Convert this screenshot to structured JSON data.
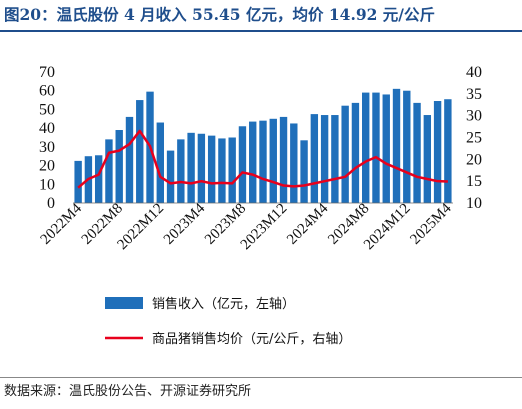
{
  "title": "图20：温氏股份 4 月收入 55.45 亿元，均价 14.92 元/公斤",
  "source": "数据来源：温氏股份公告、开源证券研究所",
  "colors": {
    "bar": "#1f6fba",
    "line": "#e8001c",
    "title": "#1f4e8c"
  },
  "chart_data": {
    "type": "bar",
    "categories": [
      "2022M4",
      "2022M5",
      "2022M6",
      "2022M7",
      "2022M8",
      "2022M9",
      "2022M10",
      "2022M11",
      "2022M12",
      "2023M1",
      "2023M2",
      "2023M3",
      "2023M4",
      "2023M5",
      "2023M6",
      "2023M7",
      "2023M8",
      "2023M9",
      "2023M10",
      "2023M11",
      "2023M12",
      "2024M1",
      "2024M2",
      "2024M3",
      "2024M4",
      "2024M5",
      "2024M6",
      "2024M7",
      "2024M8",
      "2024M9",
      "2024M10",
      "2024M11",
      "2024M12",
      "2025M1",
      "2025M2",
      "2025M3",
      "2025M4"
    ],
    "x_tick_labels": [
      "2022M4",
      "2022M8",
      "2022M12",
      "2023M4",
      "2023M8",
      "2023M12",
      "2024M4",
      "2024M8",
      "2024M12",
      "2025M4"
    ],
    "series": [
      {
        "name": "销售收入（亿元，左轴）",
        "type": "bar",
        "axis": "left",
        "values": [
          22.5,
          25,
          25.5,
          34,
          39,
          46,
          55,
          59.5,
          43,
          28,
          34,
          37.5,
          37,
          36,
          34.5,
          35,
          41,
          43.5,
          44,
          45,
          46,
          42.5,
          33.5,
          47.5,
          47,
          47,
          52,
          53.5,
          59,
          59,
          58,
          61,
          60,
          53.5,
          47,
          54.5,
          55.45
        ]
      },
      {
        "name": "商品猪销售均价（元/公斤，右轴）",
        "type": "line",
        "axis": "right",
        "values": [
          13.5,
          15.5,
          16.5,
          21.5,
          22,
          23.5,
          26.5,
          23,
          16,
          14.5,
          14.8,
          14.5,
          15,
          14.5,
          14.6,
          14.5,
          17,
          16.5,
          15.5,
          14.8,
          14,
          13.8,
          14,
          14.5,
          15,
          15.5,
          16,
          18,
          19.5,
          20.5,
          19,
          18,
          17,
          16,
          15.5,
          15,
          14.92
        ]
      }
    ],
    "y_left": {
      "min": 0,
      "max": 70,
      "ticks": [
        0,
        10,
        20,
        30,
        40,
        50,
        60,
        70
      ]
    },
    "y_right": {
      "min": 10,
      "max": 40,
      "ticks": [
        10,
        15,
        20,
        25,
        30,
        35,
        40
      ]
    },
    "legend_position": "bottom"
  }
}
